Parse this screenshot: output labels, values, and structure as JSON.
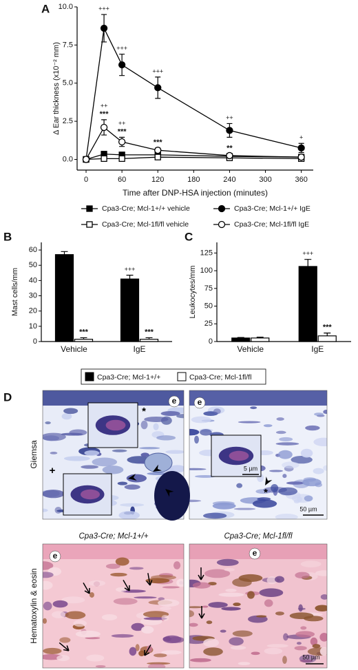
{
  "chart_data": [
    {
      "type": "line",
      "panel": "A",
      "ylabel": "Δ Ear thickness (x10⁻² mm)",
      "xlabel": "Time after DNP-HSA injection (minutes)",
      "x": [
        0,
        30,
        60,
        120,
        240,
        360
      ],
      "xlim": [
        -15,
        380
      ],
      "xticks": [
        0,
        60,
        120,
        180,
        240,
        300,
        360
      ],
      "ylim": [
        -0.7,
        10
      ],
      "yticks": [
        {
          "value": 0,
          "label": "0.0"
        },
        {
          "value": 2.5,
          "label": "2.5"
        },
        {
          "value": 5,
          "label": "5.0"
        },
        {
          "value": 7.5,
          "label": "7.5"
        },
        {
          "value": 10,
          "label": "10.0"
        }
      ],
      "series": [
        {
          "name": "Cpa3-Cre; Mcl-1+/+ vehicle",
          "color": "#000000",
          "fill": "#000000",
          "marker": "square",
          "values": [
            0,
            0.35,
            0.3,
            0.3,
            0.2,
            0.15
          ]
        },
        {
          "name": "Cpa3-Cre; Mcl-1fl/fl vehicle",
          "color": "#000000",
          "fill": "#ffffff",
          "marker": "square",
          "values": [
            0,
            0.05,
            0.05,
            0.15,
            0.1,
            0.05
          ]
        },
        {
          "name": "Cpa3-Cre; Mcl-1+/+ IgE",
          "color": "#000000",
          "fill": "#000000",
          "marker": "circle",
          "values": [
            0,
            8.6,
            6.2,
            4.7,
            1.9,
            0.75
          ],
          "errors": [
            0,
            0.9,
            0.7,
            0.7,
            0.45,
            0.3
          ],
          "sig_lower": [
            null,
            "+++",
            "+++",
            "+++",
            "++",
            "+"
          ]
        },
        {
          "name": "Cpa3-Cre; Mcl-1fl/fl IgE",
          "color": "#000000",
          "fill": "#ffffff",
          "marker": "circle",
          "values": [
            0,
            2.1,
            1.15,
            0.6,
            0.25,
            0.15
          ],
          "errors": [
            0,
            0.5,
            0.3,
            0.15,
            0.1,
            0.1
          ],
          "sig_lower": [
            null,
            "***",
            "***",
            "***",
            "**",
            null
          ],
          "sig_upper": [
            null,
            "++",
            "++",
            null,
            null,
            null
          ]
        }
      ]
    },
    {
      "type": "bar",
      "panel": "B",
      "ylabel": "Mast cells/mm",
      "categories": [
        "Vehicle",
        "IgE"
      ],
      "ylim": [
        0,
        65
      ],
      "yticks": [
        0,
        10,
        20,
        30,
        40,
        50,
        60
      ],
      "series": [
        {
          "color": "#000000",
          "values": [
            57,
            41
          ],
          "errors": [
            2,
            2.5
          ],
          "sig": [
            null,
            "+++"
          ]
        },
        {
          "color": "#ffffff",
          "values": [
            1.5,
            1.5
          ],
          "errors": [
            1,
            1
          ],
          "sig": [
            "***",
            "***"
          ]
        }
      ]
    },
    {
      "type": "bar",
      "panel": "C",
      "ylabel": "Leukocytes/mm",
      "categories": [
        "Vehicle",
        "IgE"
      ],
      "ylim": [
        0,
        140
      ],
      "yticks": [
        0,
        25,
        50,
        75,
        100,
        125
      ],
      "series": [
        {
          "color": "#000000",
          "values": [
            5,
            106
          ],
          "errors": [
            0.7,
            10
          ],
          "sig": [
            null,
            "+++"
          ]
        },
        {
          "color": "#ffffff",
          "values": [
            5,
            8
          ],
          "errors": [
            1.2,
            4
          ],
          "sig": [
            null,
            "***"
          ]
        }
      ]
    }
  ],
  "legend_bc": {
    "entries": [
      {
        "label": "Cpa3-Cre; Mcl-1+/+",
        "color": "#000000"
      },
      {
        "label": "Cpa3-Cre; Mcl-1fl/fl",
        "color": "#ffffff"
      }
    ]
  },
  "panel_d": {
    "panel": "D",
    "row_labels": [
      "Giemsa",
      "Hematoxylin & eosin"
    ],
    "column_titles": [
      "Cpa3-Cre; Mcl-1+/+",
      "Cpa3-Cre; Mcl-1fl/fl"
    ],
    "epidermis_label": "e",
    "scale_bars": [
      "50 µm",
      "5 µm",
      "50 µm"
    ],
    "symbols": [
      "*",
      "+",
      "*"
    ]
  }
}
